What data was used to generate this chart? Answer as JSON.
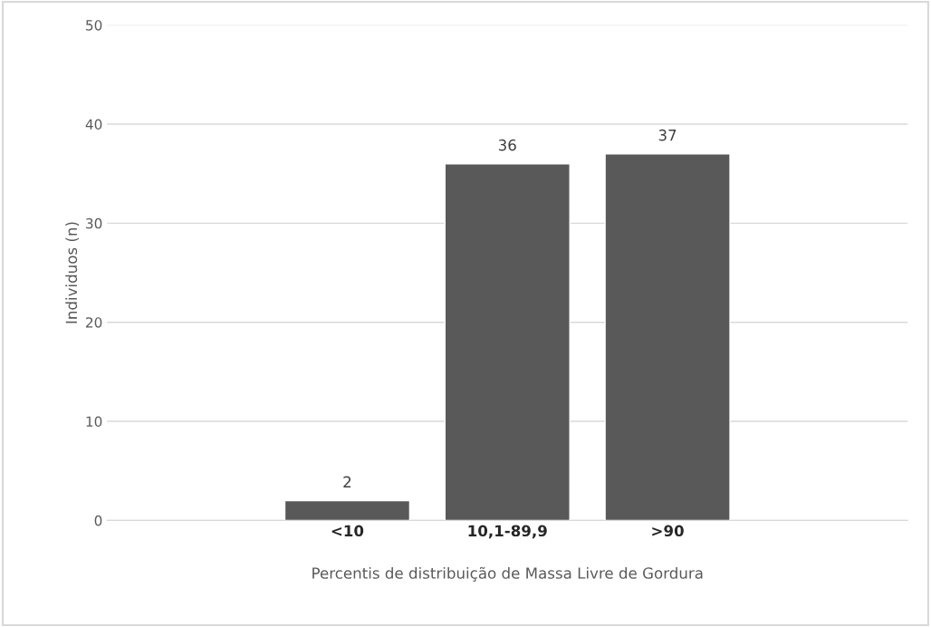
{
  "chart_data": {
    "type": "bar",
    "categories": [
      null,
      "<10",
      "10,1-89,9",
      ">90",
      null
    ],
    "values": [
      null,
      2,
      36,
      37,
      null
    ],
    "color": "#595959",
    "xlabel": "Percentis de distribuição de Massa Livre de Gordura",
    "ylabel": "Individuos (n)",
    "ylim": [
      0,
      50
    ],
    "yticks": [
      0,
      10,
      20,
      30,
      40,
      50
    ],
    "grid": "y",
    "data_labels": true
  }
}
